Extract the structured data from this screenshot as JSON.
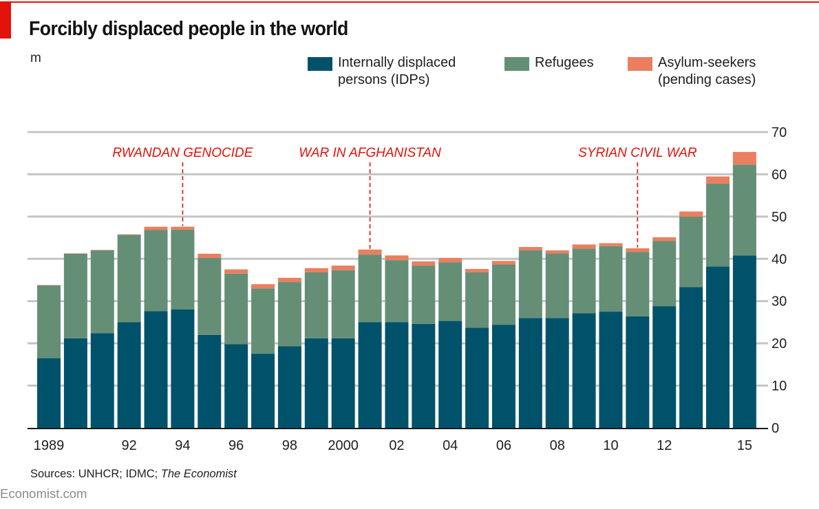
{
  "header": {
    "title": "Forcibly displaced people in the world",
    "unit": "m",
    "accent_color": "#e3120b"
  },
  "legend": [
    {
      "key": "idp",
      "label": "Internally displaced\npersons (IDPs)",
      "color": "#00526b"
    },
    {
      "key": "refugees",
      "label": "Refugees",
      "color": "#648f76"
    },
    {
      "key": "asylum",
      "label": "Asylum-seekers\n(pending cases)",
      "color": "#ea7f60"
    }
  ],
  "footer": {
    "source_prefix": "Sources: UNHCR; IDMC; ",
    "source_italic": "The Economist",
    "brand": "Economist.com"
  },
  "chart_data": {
    "type": "bar",
    "stacked": true,
    "title": "Forcibly displaced people in the world",
    "ylabel": "m",
    "xlabel": "",
    "ylim": [
      0,
      70
    ],
    "yticks": [
      0,
      10,
      20,
      30,
      40,
      50,
      60,
      70
    ],
    "y_axis_side": "right",
    "grid": true,
    "legend_position": "top-right",
    "categories": [
      1989,
      1990,
      1991,
      1992,
      1993,
      1994,
      1995,
      1996,
      1997,
      1998,
      1999,
      2000,
      2001,
      2002,
      2003,
      2004,
      2005,
      2006,
      2007,
      2008,
      2009,
      2010,
      2011,
      2012,
      2013,
      2014,
      2015
    ],
    "xtick_labels": [
      {
        "year": 1989,
        "label": "1989"
      },
      {
        "year": 1992,
        "label": "92"
      },
      {
        "year": 1994,
        "label": "94"
      },
      {
        "year": 1996,
        "label": "96"
      },
      {
        "year": 1998,
        "label": "98"
      },
      {
        "year": 2000,
        "label": "2000"
      },
      {
        "year": 2002,
        "label": "02"
      },
      {
        "year": 2004,
        "label": "04"
      },
      {
        "year": 2006,
        "label": "06"
      },
      {
        "year": 2008,
        "label": "08"
      },
      {
        "year": 2010,
        "label": "10"
      },
      {
        "year": 2012,
        "label": "12"
      },
      {
        "year": 2015,
        "label": "15"
      }
    ],
    "series": [
      {
        "name": "Internally displaced persons (IDPs)",
        "key": "idp",
        "color": "#00526b",
        "values": [
          16.5,
          21.2,
          22.4,
          25.0,
          27.6,
          28.0,
          22.0,
          19.8,
          17.5,
          19.3,
          21.2,
          21.2,
          25.0,
          25.0,
          24.6,
          25.3,
          23.7,
          24.4,
          26.0,
          26.0,
          27.1,
          27.5,
          26.4,
          28.8,
          33.3,
          38.2,
          40.8
        ]
      },
      {
        "name": "Refugees",
        "key": "refugees",
        "color": "#648f76",
        "values": [
          17.2,
          20.0,
          19.6,
          20.7,
          19.2,
          18.9,
          18.2,
          16.7,
          15.5,
          15.2,
          15.6,
          16.1,
          16.0,
          14.7,
          13.8,
          13.9,
          13.1,
          14.3,
          16.0,
          15.3,
          15.3,
          15.5,
          15.2,
          15.4,
          16.7,
          19.6,
          21.5
        ]
      },
      {
        "name": "Asylum-seekers (pending cases)",
        "key": "asylum",
        "color": "#ea7f60",
        "values": [
          0.1,
          0.1,
          0.1,
          0.1,
          0.8,
          0.7,
          1.0,
          1.0,
          1.0,
          1.0,
          1.0,
          1.1,
          1.2,
          1.1,
          1.0,
          1.0,
          0.8,
          0.8,
          0.8,
          0.7,
          1.0,
          0.7,
          0.9,
          0.9,
          1.2,
          1.7,
          3.0
        ]
      }
    ],
    "annotations": [
      {
        "label": "RWANDAN GENOCIDE",
        "year": 1994,
        "color": "#e3120b"
      },
      {
        "label": "WAR IN AFGHANISTAN",
        "year": 2001,
        "color": "#e3120b"
      },
      {
        "label": "SYRIAN CIVIL WAR",
        "year": 2011,
        "color": "#e3120b"
      }
    ]
  }
}
